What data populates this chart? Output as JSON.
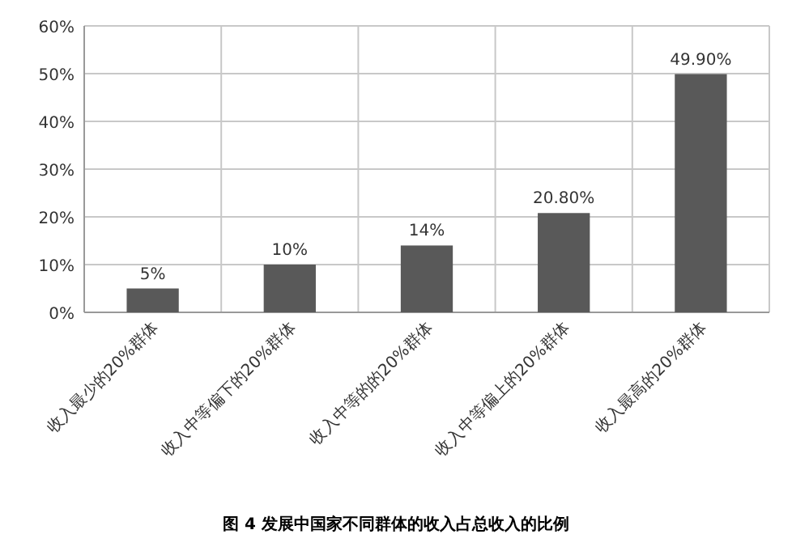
{
  "chart_data": {
    "type": "bar",
    "title": "图 4 发展中国家不同群体的收入占总收入的比例",
    "categories": [
      "收入最少的20%群体",
      "收入中等偏下的20%群体",
      "收入中等的的20%群体",
      "收入中等偏上的20%群体",
      "收入最高的20%群体"
    ],
    "values": [
      5,
      10,
      14,
      20.8,
      49.9
    ],
    "value_labels": [
      "5%",
      "10%",
      "14%",
      "20.80%",
      "49.90%"
    ],
    "color": "#595959",
    "ylim": [
      0,
      60
    ],
    "yticks": [
      {
        "value": 0,
        "label": "0%"
      },
      {
        "value": 10,
        "label": "10%"
      },
      {
        "value": 20,
        "label": "20%"
      },
      {
        "value": 30,
        "label": "30%"
      },
      {
        "value": 40,
        "label": "40%"
      },
      {
        "value": 50,
        "label": "50%"
      },
      {
        "value": 60,
        "label": "60%"
      }
    ],
    "grid": true
  }
}
